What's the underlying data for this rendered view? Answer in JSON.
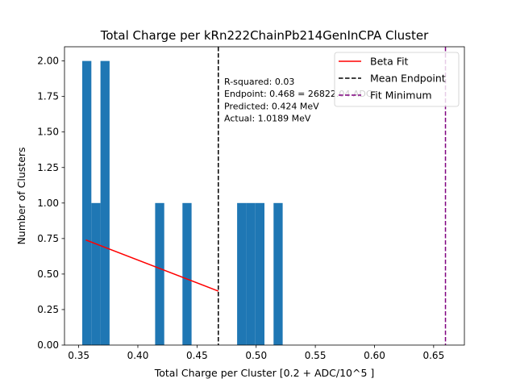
{
  "chart_data": {
    "type": "bar",
    "title": "Total Charge per kRn222ChainPb214GenInCPA Cluster",
    "xlabel": "Total Charge per Cluster [0.2 + ADC/10^5 ]",
    "ylabel": "Number of Clusters",
    "xlim": [
      0.338,
      0.676
    ],
    "ylim": [
      0,
      2.1
    ],
    "xticks": [
      "0.35",
      "0.40",
      "0.45",
      "0.50",
      "0.55",
      "0.60",
      "0.65"
    ],
    "yticks": [
      "0.00",
      "0.25",
      "0.50",
      "0.75",
      "1.00",
      "1.25",
      "1.50",
      "1.75",
      "2.00"
    ],
    "bar_color": "#1f77b4",
    "bins": [
      {
        "x0": 0.353,
        "x1": 0.3607,
        "count": 2
      },
      {
        "x0": 0.3607,
        "x1": 0.3684,
        "count": 1
      },
      {
        "x0": 0.3684,
        "x1": 0.3761,
        "count": 2
      },
      {
        "x0": 0.4146,
        "x1": 0.4223,
        "count": 1
      },
      {
        "x0": 0.4377,
        "x1": 0.4454,
        "count": 1
      },
      {
        "x0": 0.4839,
        "x1": 0.4916,
        "count": 1
      },
      {
        "x0": 0.4916,
        "x1": 0.4993,
        "count": 1
      },
      {
        "x0": 0.4993,
        "x1": 0.507,
        "count": 1
      },
      {
        "x0": 0.5147,
        "x1": 0.5224,
        "count": 1
      }
    ],
    "fit_line": {
      "name": "Beta Fit",
      "color": "#ff0000",
      "x": [
        0.356,
        0.468
      ],
      "y": [
        0.74,
        0.38
      ]
    },
    "vlines": [
      {
        "name": "Mean Endpoint",
        "x": 0.468,
        "color": "#000000"
      },
      {
        "name": "Fit Minimum",
        "x": 0.66,
        "color": "#800080"
      }
    ],
    "annotation": [
      "R-squared: 0.03",
      "Endpoint: 0.468 = 26822.04 ADC",
      "Predicted: 0.424 MeV",
      "Actual: 1.0189 MeV"
    ],
    "legend": {
      "position": "top-right",
      "entries": [
        "Beta Fit",
        "Mean Endpoint",
        "Fit Minimum"
      ]
    }
  }
}
